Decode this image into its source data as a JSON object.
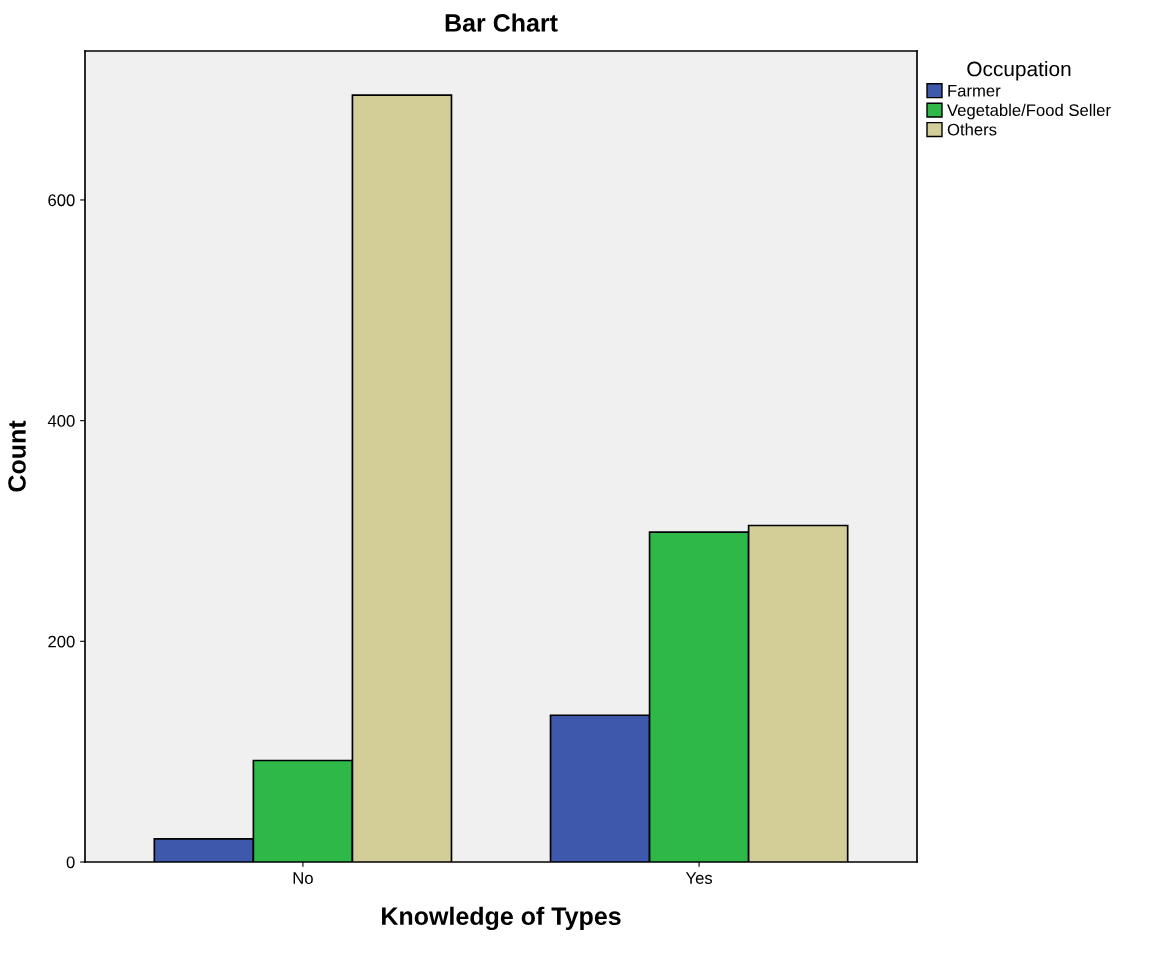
{
  "chart_data": {
    "type": "bar",
    "title": "Bar Chart",
    "xlabel": "Knowledge of Types",
    "ylabel": "Count",
    "legend_title": "Occupation",
    "categories": [
      "No",
      "Yes"
    ],
    "series": [
      {
        "name": "Farmer",
        "color": "#3e58ac",
        "values": [
          21,
          133
        ]
      },
      {
        "name": "Vegetable/Food Seller",
        "color": "#2eb848",
        "values": [
          92,
          299
        ]
      },
      {
        "name": "Others",
        "color": "#d3ce97",
        "values": [
          695,
          305
        ]
      }
    ],
    "ylim": [
      0,
      735
    ],
    "yticks": [
      0,
      200,
      400,
      600
    ],
    "grid": false,
    "legend": "top right"
  }
}
